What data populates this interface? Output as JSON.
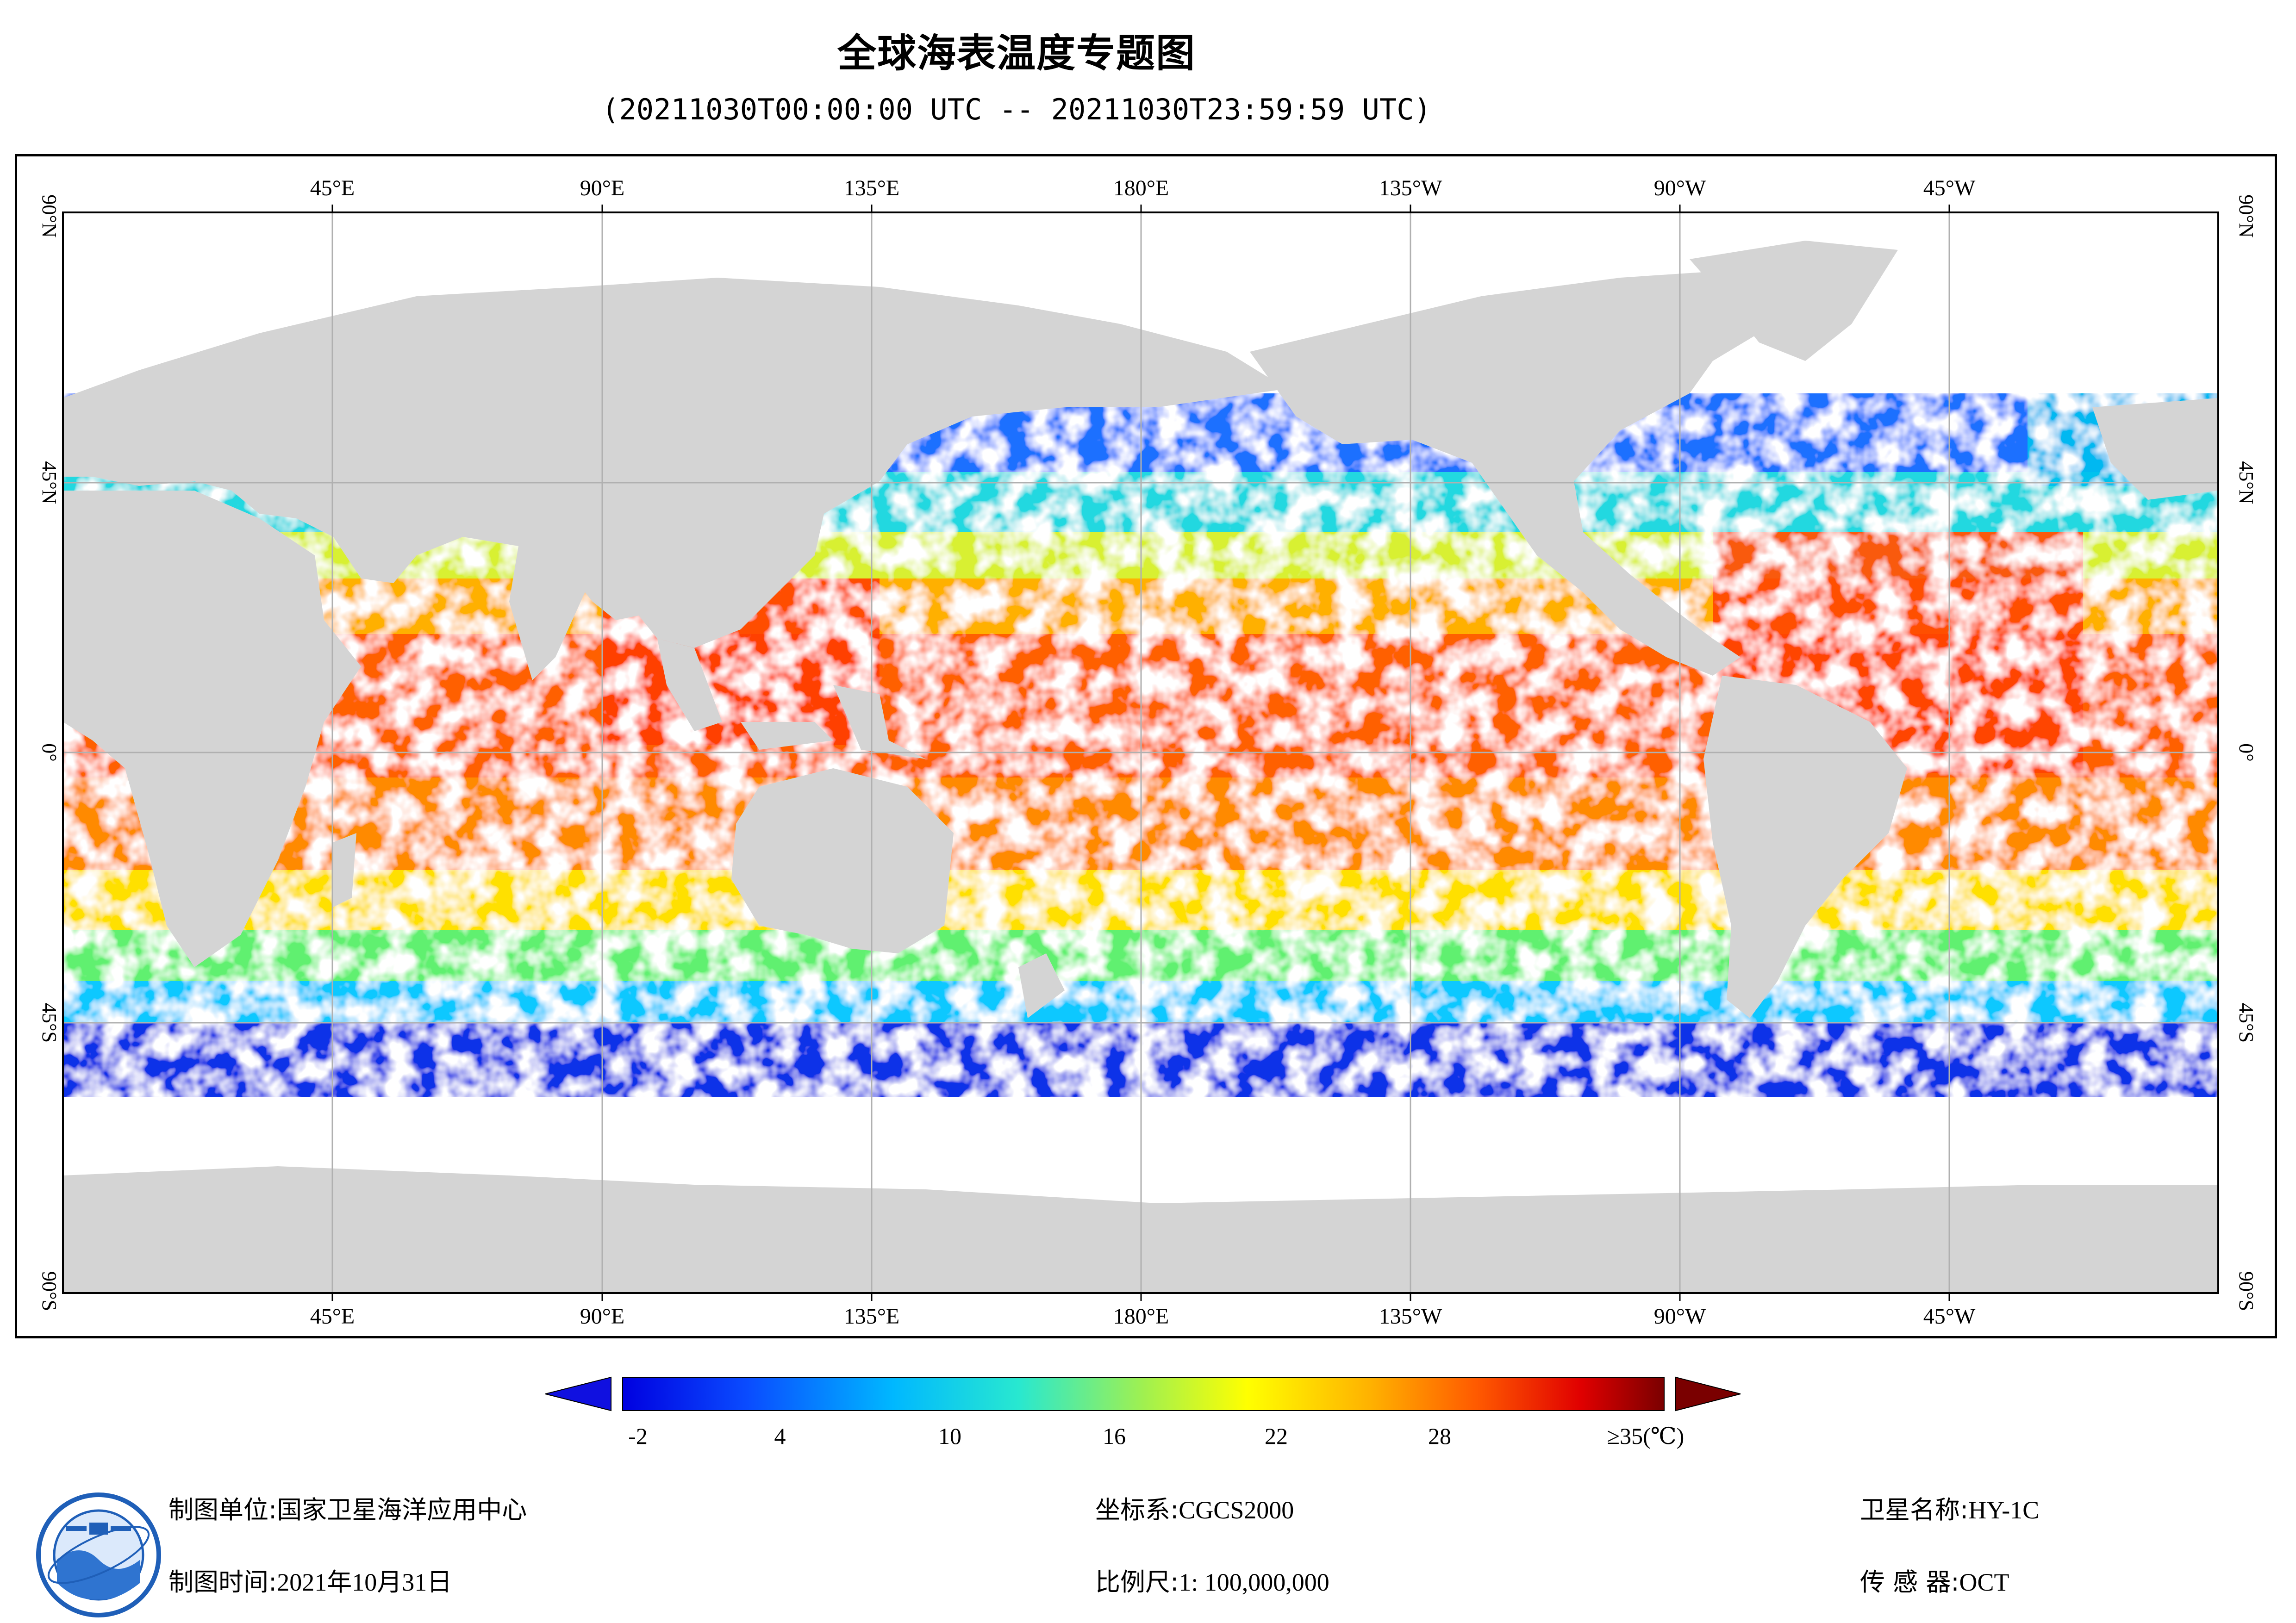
{
  "title": "全球海表温度专题图",
  "subtitle": "(20211030T00:00:00 UTC -- 20211030T23:59:59 UTC)",
  "map": {
    "projection": "equirectangular, centered 180°",
    "lon_labels": [
      "45°E",
      "90°E",
      "135°E",
      "180°E",
      "135°W",
      "90°W",
      "45°W"
    ],
    "lat_labels": [
      "90°N",
      "45°N",
      "0°",
      "45°S",
      "90°S"
    ],
    "colors": {
      "land": "#d4d4d4",
      "cloud_no_data": "#ffffff",
      "grid": "#b0b0b0"
    }
  },
  "legend": {
    "ticks": [
      "-2",
      "4",
      "10",
      "16",
      "22",
      "28",
      "≥35(℃)"
    ],
    "min": -2,
    "max": 35,
    "under_color": "#1010e0",
    "over_color": "#7a0000"
  },
  "info": {
    "producer_label": "制图单位:",
    "producer": "国家卫星海洋应用中心",
    "date_label": "制图时间:",
    "date": "2021年10月31日",
    "crs_label": "坐标系:",
    "crs": "CGCS2000",
    "scale_label": "比例尺:",
    "scale": "1: 100,000,000",
    "satellite_label": "卫星名称:",
    "satellite": "HY-1C",
    "sensor_label": "传 感 器:",
    "sensor": "OCT"
  },
  "logo": {
    "icon": "nsoas-logo-icon"
  }
}
